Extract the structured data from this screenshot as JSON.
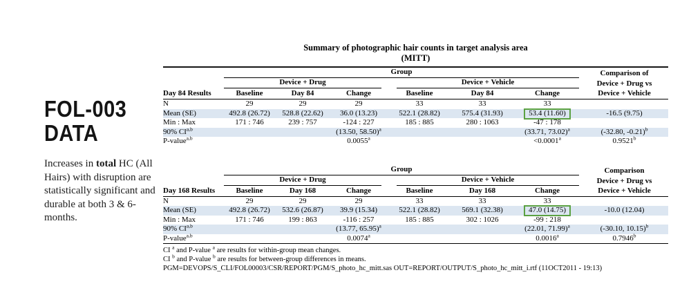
{
  "colors": {
    "row_shade": "#dce6f1",
    "highlight_border": "#5ba142",
    "rule": "#000000",
    "text": "#000000"
  },
  "sidebar": {
    "title": "FOL-003\nDATA",
    "paragraph_html": "Increases in <b>total</b> HC (All\nHairs) with disruption are\nstatistically significant and\ndurable at both 3 &amp; 6-months."
  },
  "table_title": {
    "line1": "Summary of photographic hair counts in target analysis area",
    "line2": "(MITT)"
  },
  "tables": [
    {
      "name": "Day 84 Results",
      "group_label": "Group",
      "subgroups": [
        "Device + Drug",
        "Device + Vehicle"
      ],
      "comparison_lines": [
        "Comparison of",
        "Device + Drug vs",
        "Device + Vehicle"
      ],
      "col_headers": [
        "Day 84 Results",
        "Baseline",
        "Day 84",
        "Change",
        "Baseline",
        "Day 84",
        "Change"
      ],
      "rows": [
        {
          "cells": [
            "N",
            "29",
            "29",
            "29",
            "33",
            "33",
            "33",
            ""
          ],
          "shaded": false
        },
        {
          "cells": [
            "Mean (SE)",
            "492.8 (26.72)",
            "528.8 (22.62)",
            "36.0 (13.23)",
            "522.1 (28.82)",
            "575.4 (31.93)",
            "53.4 (11.60)",
            "-16.5 (9.75)"
          ],
          "shaded": true,
          "box": 6
        },
        {
          "cells": [
            "Min : Max",
            "171 : 746",
            "239 : 757",
            "-124 : 227",
            "185 : 885",
            "280 : 1063",
            "-47 : 178",
            ""
          ],
          "shaded": false
        },
        {
          "cells": [
            "90% CI<sup>a,b</sup>",
            "",
            "",
            "(13.50, 58.50)<sup>a</sup>",
            "",
            "",
            "(33.71, 73.02)<sup>a</sup>",
            "(-32.80, -0.21)<sup>b</sup>"
          ],
          "shaded": true
        },
        {
          "cells": [
            "P-value<sup>a,b</sup>",
            "",
            "",
            "0.0055<sup>a</sup>",
            "",
            "",
            "&lt;0.0001<sup>a</sup>",
            "0.9521<sup>b</sup>"
          ],
          "shaded": false
        }
      ]
    },
    {
      "name": "Day 168 Results",
      "group_label": "Group",
      "subgroups": [
        "Device + Drug",
        "Device + Vehicle"
      ],
      "comparison_lines": [
        "Comparison",
        "Device + Drug vs",
        "Device + Vehicle"
      ],
      "col_headers": [
        "Day 168 Results",
        "Baseline",
        "Day 168",
        "Change",
        "Baseline",
        "Day 168",
        "Change"
      ],
      "rows": [
        {
          "cells": [
            "N",
            "29",
            "29",
            "29",
            "33",
            "33",
            "33",
            ""
          ],
          "shaded": false
        },
        {
          "cells": [
            "Mean (SE)",
            "492.8 (26.72)",
            "532.6 (26.87)",
            "39.9 (15.34)",
            "522.1 (28.82)",
            "569.1 (32.38)",
            "47.0 (14.75)",
            "-10.0 (12.04)"
          ],
          "shaded": true,
          "box": 6
        },
        {
          "cells": [
            "Min : Max",
            "171 : 746",
            "199 : 863",
            "-116 : 257",
            "185 : 885",
            "302 : 1026",
            "-99 : 218",
            ""
          ],
          "shaded": false
        },
        {
          "cells": [
            "90% CI<sup>a,b</sup>",
            "",
            "",
            "(13.77, 65.95)<sup>a</sup>",
            "",
            "",
            "(22.01, 71.99)<sup>a</sup>",
            "(-30.10, 10.15)<sup>b</sup>"
          ],
          "shaded": true
        },
        {
          "cells": [
            "P-value<sup>a,b</sup>",
            "",
            "",
            "0.0074<sup>a</sup>",
            "",
            "",
            "0.0016<sup>a</sup>",
            "0.7946<sup>b</sup>"
          ],
          "shaded": false
        }
      ]
    }
  ],
  "footnotes": [
    "CI <sup>a</sup> and P-value <sup>a</sup> are results for within-group mean changes.",
    "CI <sup>b</sup> and P-value <sup>b</sup> are results for between-group differences in means.",
    "PGM=DEVOPS/S_CLI/FOL00003/CSR/REPORT/PGM/S_photo_hc_mitt.sas  OUT=REPORT/OUTPUT/S_photo_hc_mitt_i.rtf (11OCT2011 - 19:13)"
  ]
}
